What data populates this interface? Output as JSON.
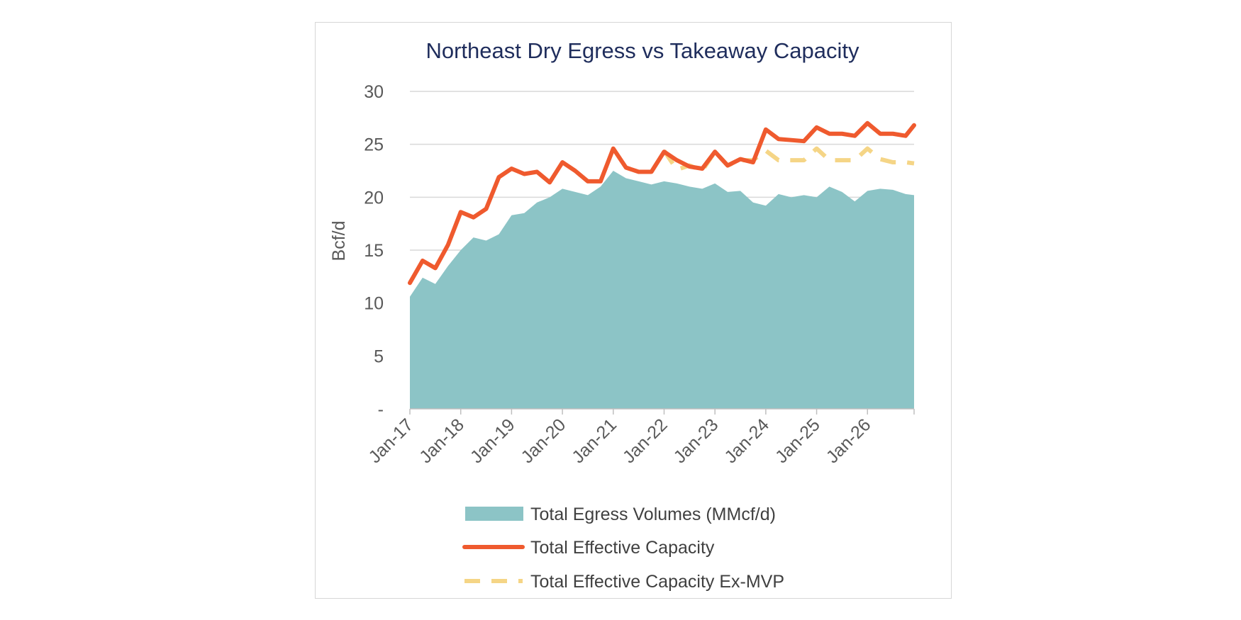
{
  "chart_data": {
    "type": "area",
    "title": "Northeast Dry Egress vs Takeaway Capacity",
    "ylabel": "Bcf/d",
    "xlabel": "",
    "ylim": [
      0,
      30
    ],
    "yticks": [
      0,
      5,
      10,
      15,
      20,
      25,
      30
    ],
    "ytick_labels": [
      "-",
      "5",
      "10",
      "15",
      "20",
      "25",
      "30"
    ],
    "xlim": [
      "Jan-17",
      "Dec-26"
    ],
    "xtick_labels": [
      "Jan-17",
      "Jan-18",
      "Jan-19",
      "Jan-20",
      "Jan-21",
      "Jan-22",
      "Jan-23",
      "Jan-24",
      "Jan-25",
      "Jan-26"
    ],
    "grid": "horizontal",
    "legend": "bottom",
    "x": [
      "Jan-17",
      "Apr-17",
      "Jul-17",
      "Oct-17",
      "Jan-18",
      "Apr-18",
      "Jul-18",
      "Oct-18",
      "Jan-19",
      "Apr-19",
      "Jul-19",
      "Oct-19",
      "Jan-20",
      "Apr-20",
      "Jul-20",
      "Oct-20",
      "Jan-21",
      "Apr-21",
      "Jul-21",
      "Oct-21",
      "Jan-22",
      "Apr-22",
      "Jul-22",
      "Oct-22",
      "Jan-23",
      "Apr-23",
      "Jul-23",
      "Oct-23",
      "Jan-24",
      "Apr-24",
      "Jul-24",
      "Oct-24",
      "Jan-25",
      "Apr-25",
      "Jul-25",
      "Oct-25",
      "Jan-26",
      "Apr-26",
      "Jul-26",
      "Oct-26",
      "Dec-26"
    ],
    "series": [
      {
        "name": "Total Egress Volumes (MMcf/d)",
        "type": "area",
        "color": "#8cc4c6",
        "values": [
          10.6,
          12.4,
          11.8,
          13.5,
          15.0,
          16.2,
          15.9,
          16.5,
          18.3,
          18.5,
          19.5,
          20.0,
          20.8,
          20.5,
          20.2,
          21.0,
          22.5,
          21.8,
          21.5,
          21.2,
          21.5,
          21.3,
          21.0,
          20.8,
          21.3,
          20.5,
          20.6,
          19.5,
          19.2,
          20.3,
          20.0,
          20.2,
          20.0,
          21.0,
          20.5,
          19.6,
          20.6,
          20.8,
          20.7,
          20.3,
          20.2
        ]
      },
      {
        "name": "Total Effective Capacity",
        "type": "line",
        "color": "#ef5a2e",
        "values": [
          11.9,
          14.0,
          13.3,
          15.5,
          18.6,
          18.1,
          18.9,
          21.9,
          22.7,
          22.2,
          22.4,
          21.4,
          23.3,
          22.5,
          21.5,
          21.5,
          24.6,
          22.8,
          22.4,
          22.4,
          24.3,
          23.5,
          22.9,
          22.7,
          24.3,
          23.0,
          23.6,
          23.3,
          26.4,
          25.5,
          25.4,
          25.3,
          26.6,
          26.0,
          26.0,
          25.8,
          27.0,
          26.0,
          26.0,
          25.8,
          26.8
        ]
      },
      {
        "name": "Total Effective Capacity Ex-MVP",
        "type": "line",
        "dashed": true,
        "color": "#f5d586",
        "values": [
          null,
          null,
          null,
          null,
          null,
          null,
          null,
          null,
          null,
          null,
          null,
          null,
          null,
          null,
          null,
          null,
          null,
          null,
          null,
          null,
          24.4,
          22.6,
          23.0,
          22.5,
          24.3,
          23.0,
          23.5,
          23.5,
          24.4,
          23.5,
          23.5,
          23.5,
          24.6,
          23.5,
          23.5,
          23.5,
          24.6,
          23.6,
          23.3,
          23.3,
          23.2
        ]
      }
    ]
  }
}
